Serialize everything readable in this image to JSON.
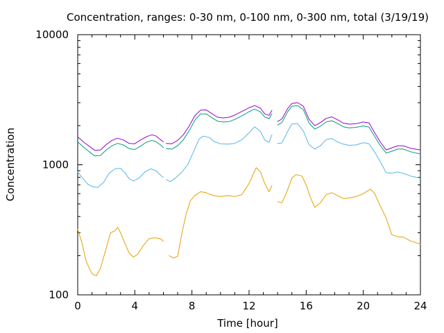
{
  "chart_data": {
    "type": "line",
    "title": "Concentration, ranges: 0-30 nm, 0-100 nm, 0-300 nm, total (3/19/19)",
    "xlabel": "Time [hour]",
    "ylabel": "Concentration",
    "xlim": [
      0,
      24
    ],
    "ylim": [
      100,
      10000
    ],
    "yscale": "log",
    "xticks": [
      "0",
      "4",
      "8",
      "12",
      "16",
      "20",
      "24"
    ],
    "yticks": [
      "100",
      "1000",
      "10000"
    ],
    "grid": false,
    "legend": "none",
    "series": [
      {
        "color": "#e69f00",
        "segments": [
          [
            [
              0,
              320
            ],
            [
              0.3,
              250
            ],
            [
              0.6,
              180
            ],
            [
              1.0,
              145
            ],
            [
              1.3,
              140
            ],
            [
              1.6,
              160
            ],
            [
              2.0,
              230
            ],
            [
              2.3,
              300
            ],
            [
              2.6,
              310
            ],
            [
              2.8,
              330
            ],
            [
              3.0,
              300
            ],
            [
              3.3,
              250
            ],
            [
              3.6,
              210
            ],
            [
              3.9,
              195
            ],
            [
              4.2,
              205
            ],
            [
              4.6,
              240
            ],
            [
              5.0,
              270
            ],
            [
              5.4,
              275
            ],
            [
              5.8,
              270
            ],
            [
              6.0,
              258
            ]
          ],
          [
            [
              6.4,
              200
            ],
            [
              6.7,
              192
            ],
            [
              7.0,
              198
            ],
            [
              7.3,
              300
            ],
            [
              7.6,
              420
            ],
            [
              7.9,
              530
            ],
            [
              8.2,
              580
            ],
            [
              8.6,
              620
            ],
            [
              9.0,
              610
            ],
            [
              9.5,
              580
            ],
            [
              10.0,
              570
            ],
            [
              10.5,
              580
            ],
            [
              11.0,
              570
            ],
            [
              11.5,
              590
            ],
            [
              12.0,
              720
            ],
            [
              12.5,
              950
            ],
            [
              12.8,
              880
            ],
            [
              13.1,
              720
            ],
            [
              13.4,
              620
            ],
            [
              13.6,
              690
            ]
          ],
          [
            [
              14.0,
              520
            ],
            [
              14.3,
              510
            ],
            [
              14.6,
              600
            ],
            [
              15.0,
              790
            ],
            [
              15.3,
              840
            ],
            [
              15.7,
              820
            ],
            [
              16.0,
              700
            ],
            [
              16.3,
              560
            ],
            [
              16.6,
              470
            ],
            [
              17.0,
              510
            ],
            [
              17.4,
              590
            ],
            [
              17.8,
              610
            ],
            [
              18.2,
              580
            ],
            [
              18.6,
              550
            ],
            [
              19.0,
              555
            ],
            [
              19.5,
              570
            ],
            [
              20.0,
              600
            ],
            [
              20.5,
              650
            ],
            [
              20.8,
              600
            ],
            [
              21.2,
              480
            ],
            [
              21.6,
              390
            ],
            [
              22.0,
              290
            ],
            [
              22.4,
              280
            ],
            [
              22.8,
              278
            ],
            [
              23.3,
              260
            ],
            [
              24.0,
              245
            ]
          ]
        ]
      },
      {
        "color": "#56b4e9",
        "segments": [
          [
            [
              0,
              880
            ],
            [
              0.3,
              800
            ],
            [
              0.7,
              710
            ],
            [
              1.0,
              680
            ],
            [
              1.4,
              670
            ],
            [
              1.8,
              730
            ],
            [
              2.2,
              860
            ],
            [
              2.6,
              930
            ],
            [
              3.0,
              940
            ],
            [
              3.3,
              870
            ],
            [
              3.6,
              780
            ],
            [
              3.9,
              750
            ],
            [
              4.3,
              790
            ],
            [
              4.7,
              880
            ],
            [
              5.1,
              930
            ],
            [
              5.5,
              900
            ],
            [
              5.8,
              830
            ],
            [
              6.0,
              800
            ]
          ],
          [
            [
              6.2,
              770
            ],
            [
              6.5,
              740
            ],
            [
              6.9,
              800
            ],
            [
              7.3,
              880
            ],
            [
              7.7,
              1000
            ],
            [
              8.1,
              1250
            ],
            [
              8.5,
              1580
            ],
            [
              8.8,
              1660
            ],
            [
              9.2,
              1620
            ],
            [
              9.6,
              1500
            ],
            [
              10.0,
              1450
            ],
            [
              10.5,
              1440
            ],
            [
              11.0,
              1460
            ],
            [
              11.5,
              1560
            ],
            [
              12.0,
              1760
            ],
            [
              12.4,
              1960
            ],
            [
              12.8,
              1800
            ],
            [
              13.1,
              1550
            ],
            [
              13.4,
              1490
            ],
            [
              13.6,
              1700
            ]
          ],
          [
            [
              14.0,
              1460
            ],
            [
              14.3,
              1470
            ],
            [
              14.7,
              1800
            ],
            [
              15.0,
              2060
            ],
            [
              15.4,
              2070
            ],
            [
              15.8,
              1820
            ],
            [
              16.2,
              1430
            ],
            [
              16.6,
              1320
            ],
            [
              17.0,
              1400
            ],
            [
              17.4,
              1560
            ],
            [
              17.8,
              1590
            ],
            [
              18.2,
              1500
            ],
            [
              18.6,
              1440
            ],
            [
              19.0,
              1410
            ],
            [
              19.5,
              1420
            ],
            [
              20.0,
              1480
            ],
            [
              20.4,
              1450
            ],
            [
              20.8,
              1250
            ],
            [
              21.2,
              1050
            ],
            [
              21.6,
              870
            ],
            [
              22.0,
              860
            ],
            [
              22.4,
              880
            ],
            [
              22.8,
              860
            ],
            [
              23.3,
              820
            ],
            [
              24.0,
              790
            ]
          ]
        ]
      },
      {
        "color": "#009e73",
        "segments": [
          [
            [
              0,
              1500
            ],
            [
              0.4,
              1370
            ],
            [
              0.8,
              1260
            ],
            [
              1.2,
              1170
            ],
            [
              1.6,
              1180
            ],
            [
              2.0,
              1300
            ],
            [
              2.4,
              1400
            ],
            [
              2.8,
              1460
            ],
            [
              3.2,
              1420
            ],
            [
              3.6,
              1330
            ],
            [
              4.0,
              1310
            ],
            [
              4.4,
              1390
            ],
            [
              4.8,
              1490
            ],
            [
              5.2,
              1540
            ],
            [
              5.5,
              1500
            ],
            [
              5.8,
              1420
            ],
            [
              6.0,
              1360
            ]
          ],
          [
            [
              6.2,
              1330
            ],
            [
              6.6,
              1320
            ],
            [
              7.0,
              1400
            ],
            [
              7.4,
              1560
            ],
            [
              7.8,
              1820
            ],
            [
              8.2,
              2200
            ],
            [
              8.6,
              2460
            ],
            [
              9.0,
              2460
            ],
            [
              9.4,
              2300
            ],
            [
              9.8,
              2160
            ],
            [
              10.2,
              2130
            ],
            [
              10.6,
              2150
            ],
            [
              11.0,
              2230
            ],
            [
              11.5,
              2380
            ],
            [
              12.0,
              2560
            ],
            [
              12.4,
              2680
            ],
            [
              12.8,
              2550
            ],
            [
              13.1,
              2330
            ],
            [
              13.4,
              2260
            ],
            [
              13.6,
              2470
            ]
          ],
          [
            [
              14.0,
              2020
            ],
            [
              14.3,
              2110
            ],
            [
              14.7,
              2550
            ],
            [
              15.0,
              2820
            ],
            [
              15.4,
              2850
            ],
            [
              15.8,
              2650
            ],
            [
              16.2,
              2100
            ],
            [
              16.6,
              1880
            ],
            [
              17.0,
              1980
            ],
            [
              17.4,
              2130
            ],
            [
              17.8,
              2180
            ],
            [
              18.2,
              2080
            ],
            [
              18.6,
              1960
            ],
            [
              19.0,
              1920
            ],
            [
              19.5,
              1940
            ],
            [
              20.0,
              1990
            ],
            [
              20.4,
              1950
            ],
            [
              20.8,
              1650
            ],
            [
              21.2,
              1400
            ],
            [
              21.6,
              1230
            ],
            [
              22.0,
              1270
            ],
            [
              22.4,
              1320
            ],
            [
              22.8,
              1320
            ],
            [
              23.3,
              1260
            ],
            [
              24.0,
              1210
            ]
          ]
        ]
      },
      {
        "color": "#9400d3",
        "segments": [
          [
            [
              0,
              1640
            ],
            [
              0.4,
              1500
            ],
            [
              0.8,
              1390
            ],
            [
              1.2,
              1290
            ],
            [
              1.6,
              1300
            ],
            [
              2.0,
              1430
            ],
            [
              2.4,
              1540
            ],
            [
              2.8,
              1600
            ],
            [
              3.2,
              1550
            ],
            [
              3.6,
              1460
            ],
            [
              4.0,
              1450
            ],
            [
              4.4,
              1550
            ],
            [
              4.8,
              1640
            ],
            [
              5.2,
              1700
            ],
            [
              5.5,
              1660
            ],
            [
              5.8,
              1560
            ],
            [
              6.0,
              1500
            ]
          ],
          [
            [
              6.2,
              1460
            ],
            [
              6.6,
              1450
            ],
            [
              7.0,
              1540
            ],
            [
              7.4,
              1700
            ],
            [
              7.8,
              1980
            ],
            [
              8.2,
              2380
            ],
            [
              8.6,
              2630
            ],
            [
              9.0,
              2640
            ],
            [
              9.4,
              2470
            ],
            [
              9.8,
              2320
            ],
            [
              10.2,
              2290
            ],
            [
              10.6,
              2320
            ],
            [
              11.0,
              2410
            ],
            [
              11.5,
              2570
            ],
            [
              12.0,
              2740
            ],
            [
              12.4,
              2850
            ],
            [
              12.8,
              2720
            ],
            [
              13.1,
              2460
            ],
            [
              13.4,
              2400
            ],
            [
              13.6,
              2620
            ]
          ],
          [
            [
              14.0,
              2150
            ],
            [
              14.3,
              2250
            ],
            [
              14.7,
              2700
            ],
            [
              15.0,
              2960
            ],
            [
              15.4,
              3000
            ],
            [
              15.8,
              2820
            ],
            [
              16.2,
              2240
            ],
            [
              16.6,
              2000
            ],
            [
              17.0,
              2110
            ],
            [
              17.4,
              2270
            ],
            [
              17.8,
              2330
            ],
            [
              18.2,
              2220
            ],
            [
              18.6,
              2090
            ],
            [
              19.0,
              2050
            ],
            [
              19.5,
              2070
            ],
            [
              20.0,
              2130
            ],
            [
              20.4,
              2100
            ],
            [
              20.8,
              1760
            ],
            [
              21.2,
              1490
            ],
            [
              21.6,
              1300
            ],
            [
              22.0,
              1350
            ],
            [
              22.4,
              1400
            ],
            [
              22.8,
              1400
            ],
            [
              23.3,
              1340
            ],
            [
              24.0,
              1300
            ]
          ]
        ]
      }
    ]
  }
}
